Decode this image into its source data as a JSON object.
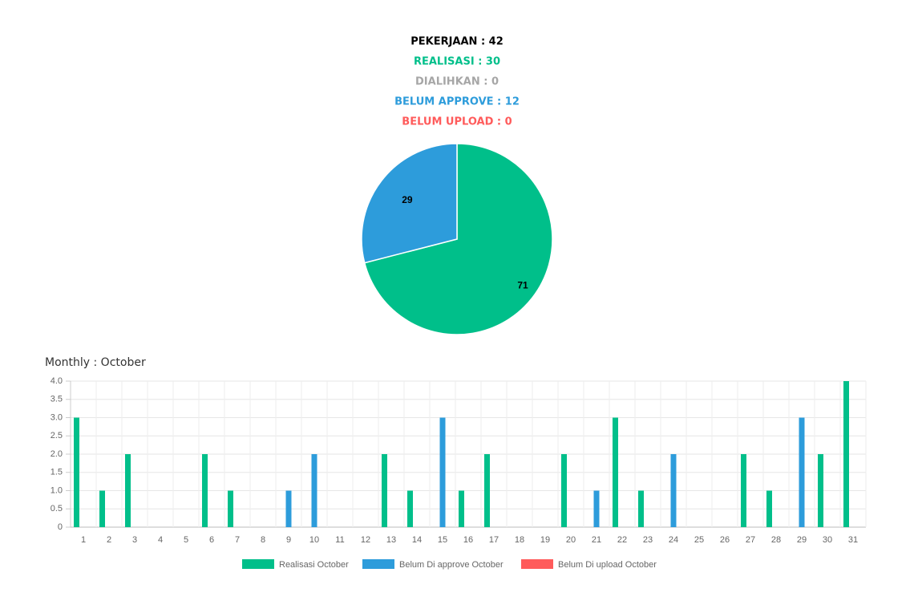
{
  "chart_data": [
    {
      "type": "pie",
      "summary": [
        {
          "text": "PEKERJAAN : 42",
          "color": "#000000"
        },
        {
          "text": "REALISASI : 30",
          "color": "#00bf8a"
        },
        {
          "text": "DIALIHKAN : 0",
          "color": "#a6a6a6"
        },
        {
          "text": "BELUM APPROVE : 12",
          "color": "#2d9cdb"
        },
        {
          "text": "BELUM UPLOAD : 0",
          "color": "#ff5b5b"
        }
      ],
      "values": [
        71,
        29
      ],
      "colors": [
        "#00bf8a",
        "#2d9cdb"
      ]
    },
    {
      "type": "bar",
      "title": "Monthly : October",
      "categories": [
        "1",
        "2",
        "3",
        "4",
        "5",
        "6",
        "7",
        "8",
        "9",
        "10",
        "11",
        "12",
        "13",
        "14",
        "15",
        "16",
        "17",
        "18",
        "19",
        "20",
        "21",
        "22",
        "23",
        "24",
        "25",
        "26",
        "27",
        "28",
        "29",
        "30",
        "31"
      ],
      "series": [
        {
          "name": "Realisasi October",
          "color": "#00bf8a",
          "values": [
            3,
            1,
            2,
            0,
            0,
            2,
            1,
            0,
            0,
            0,
            0,
            0,
            2,
            1,
            0,
            1,
            2,
            0,
            0,
            2,
            0,
            3,
            1,
            0,
            0,
            0,
            2,
            1,
            0,
            2,
            4
          ]
        },
        {
          "name": "Belum Di approve October",
          "color": "#2d9cdb",
          "values": [
            0,
            0,
            0,
            0,
            0,
            0,
            0,
            0,
            1,
            2,
            0,
            0,
            0,
            0,
            3,
            0,
            0,
            0,
            0,
            0,
            1,
            0,
            0,
            2,
            0,
            0,
            0,
            0,
            3,
            0,
            0
          ]
        },
        {
          "name": "Belum Di upload October",
          "color": "#ff5b5b",
          "values": [
            0,
            0,
            0,
            0,
            0,
            0,
            0,
            0,
            0,
            0,
            0,
            0,
            0,
            0,
            0,
            0,
            0,
            0,
            0,
            0,
            0,
            0,
            0,
            0,
            0,
            0,
            0,
            0,
            0,
            0,
            0
          ]
        }
      ],
      "ylim": [
        0,
        4
      ],
      "yticks": [
        0,
        0.5,
        {
          "value": 1,
          "label": "1.0"
        },
        1.5,
        {
          "value": 2,
          "label": "2.0"
        },
        2.5,
        {
          "value": 3,
          "label": "3.0"
        },
        3.5,
        {
          "value": 4,
          "label": "4.0"
        }
      ],
      "grid": true
    }
  ]
}
